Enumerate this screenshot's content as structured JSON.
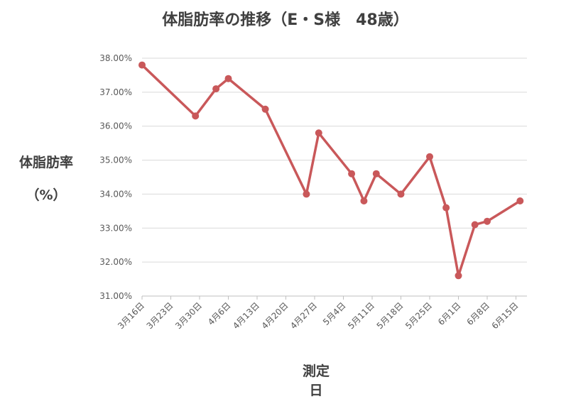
{
  "chart_data": {
    "type": "line",
    "title": "体脂肪率の推移（E・S様　48歳）",
    "ylabel_line1": "体脂肪率",
    "ylabel_line2": "（%）",
    "xlabel": "測定日",
    "ylim": [
      31.0,
      38.0
    ],
    "yticks": [
      "31.00%",
      "32.00%",
      "33.00%",
      "34.00%",
      "35.00%",
      "36.00%",
      "37.00%",
      "38.00%"
    ],
    "x_ticks": [
      "3月16日",
      "3月23日",
      "3月30日",
      "4月6日",
      "4月13日",
      "4月20日",
      "4月27日",
      "5月4日",
      "5月11日",
      "5月18日",
      "5月25日",
      "6月1日",
      "6月8日",
      "6月15日"
    ],
    "x_tick_days": [
      0,
      7,
      14,
      21,
      28,
      35,
      42,
      49,
      56,
      63,
      70,
      77,
      84,
      91
    ],
    "series": [
      {
        "name": "",
        "color": "#c9585a",
        "points": [
          {
            "day": 0,
            "value": 37.8
          },
          {
            "day": 13,
            "value": 36.3
          },
          {
            "day": 18,
            "value": 37.1
          },
          {
            "day": 21,
            "value": 37.4
          },
          {
            "day": 30,
            "value": 36.5
          },
          {
            "day": 40,
            "value": 34.0
          },
          {
            "day": 43,
            "value": 35.8
          },
          {
            "day": 51,
            "value": 34.6
          },
          {
            "day": 54,
            "value": 33.8
          },
          {
            "day": 57,
            "value": 34.6
          },
          {
            "day": 63,
            "value": 34.0
          },
          {
            "day": 70,
            "value": 35.1
          },
          {
            "day": 74,
            "value": 33.6
          },
          {
            "day": 77,
            "value": 31.6
          },
          {
            "day": 81,
            "value": 33.1
          },
          {
            "day": 84,
            "value": 33.2
          },
          {
            "day": 92,
            "value": 33.8
          }
        ]
      }
    ],
    "grid": true,
    "legend": "none"
  }
}
